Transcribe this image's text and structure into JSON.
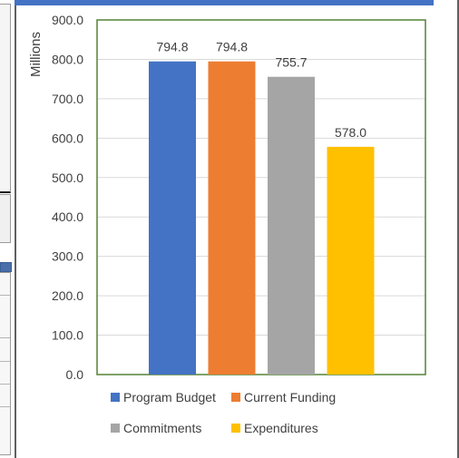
{
  "chart_data": {
    "type": "bar",
    "ylabel": "Millions",
    "ylim": [
      0,
      900
    ],
    "yticks": [
      "0.0",
      "100.0",
      "200.0",
      "300.0",
      "400.0",
      "500.0",
      "600.0",
      "700.0",
      "800.0",
      "900.0"
    ],
    "grid": true,
    "legend_position": "bottom",
    "series": [
      {
        "name": "Program Budget",
        "value": 794.8,
        "label": "794.8",
        "color": "#4472c4"
      },
      {
        "name": "Current Funding",
        "value": 794.8,
        "label": "794.8",
        "color": "#ed7d31"
      },
      {
        "name": "Commitments",
        "value": 755.7,
        "label": "755.7",
        "color": "#a5a5a5"
      },
      {
        "name": "Expenditures",
        "value": 578.0,
        "label": "578.0",
        "color": "#ffc000"
      }
    ],
    "plot_border_color": "#548235"
  }
}
